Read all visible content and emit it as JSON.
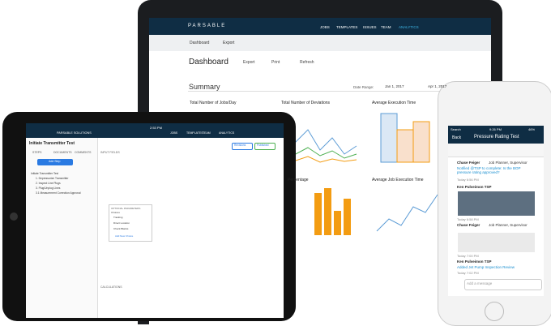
{
  "laptop": {
    "brand": "PARSABLE",
    "nav": [
      "JOBS",
      "TEMPLATES",
      "ISSUES",
      "TEAM",
      "ANALYTICS"
    ],
    "subnav": [
      "Dashboard",
      "Export"
    ],
    "page_title": "Dashboard",
    "actions": [
      "Export",
      "Print",
      "Refresh"
    ],
    "section": "Summary",
    "date_label": "Date Range:",
    "date_from": "Jan 1, 2017",
    "date_to": "Apr 1, 2017",
    "charts": [
      "Total Number of Jobs/Day",
      "Total Number of Deviations",
      "Average Execution Time",
      "Percentage",
      "Average Job Execution Time"
    ]
  },
  "tablet": {
    "status_time": "2:53 PM",
    "brand": "PARSABLE SOLUTIONS",
    "nav": [
      "JOBS",
      "TEMPLATES",
      "TEAM",
      "ANALYTICS"
    ],
    "title": "Initiate Transmitter Test",
    "tabs": [
      "STEPS",
      "DOCUMENTS",
      "COMMENTS"
    ],
    "add_step": "Add Step",
    "steps": [
      "Initiate Transmitter Test",
      "1. Depressurize Transmitter",
      "2. Inspect Line Plugs",
      "3. Plug/Unplug Lines",
      "3.1 Measurement Correction Approval"
    ],
    "buttons": [
      "Revisions",
      "Published"
    ],
    "input_fields": "INPUT FIELDS",
    "optional": "OPTIONAL PARAMETERS",
    "choices_label": "Choices",
    "choices": [
      "Tracking",
      "Direct Location",
      "Check Blanks"
    ],
    "add_choice": "Add New Choice",
    "calculations": "CALCULATIONS"
  },
  "phone": {
    "carrier": "Search",
    "time": "9:26 PM",
    "battery": "46%",
    "back": "Back",
    "title": "Pressure Rating Test",
    "messages": [
      {
        "author": "Chase Feiger",
        "role": "Job Planner, Supervisor",
        "text": "Notified @TSP to complete: Is the BOP pressure rating approved?",
        "time": "Today 6:56 PM"
      },
      {
        "author": "Ken Pulveimon TSP",
        "time": "Today 6:58 PM"
      },
      {
        "author": "Chase Feiger",
        "role": "Job Planner, Supervisor",
        "time": "Today 7:00 PM"
      },
      {
        "author": "Ken Pulveimon TSP",
        "text": "Added Jet Pump Inspection Review",
        "time": "Today 7:02 PM"
      }
    ],
    "input": "Add a message"
  }
}
